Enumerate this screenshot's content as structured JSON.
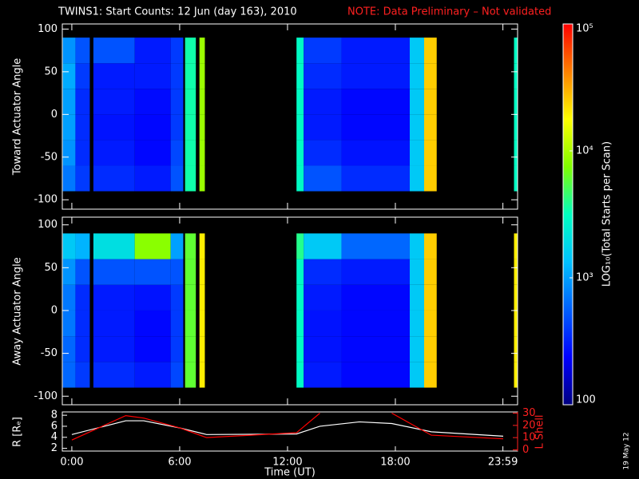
{
  "chart_data": [
    {
      "type": "heatmap",
      "title": "TWINS1: Start Counts: 12 Jun (day 163), 2010",
      "note": "NOTE: Data Preliminary – Not validated",
      "ylabel": "Toward Actuator Angle",
      "xlim": [
        -0.53,
        24.8
      ],
      "ylim": [
        -111,
        106
      ],
      "yticks": [
        100,
        50,
        0,
        -50,
        -100
      ],
      "xbins": [
        -0.5,
        0.2,
        1.0,
        1.2,
        3.5,
        5.5,
        6.2,
        6.3,
        6.9,
        7.1,
        7.4,
        12.5,
        12.9,
        15,
        18.8,
        19.6,
        20.3,
        24.6,
        24.8
      ],
      "ybins": [
        -90,
        -60,
        -30,
        0,
        30,
        60,
        90
      ],
      "values": [
        [
          700,
          400,
          null,
          350,
          300,
          500,
          null,
          3500,
          null,
          9000,
          null,
          3000,
          500,
          350,
          1500,
          25000,
          null,
          3000
        ],
        [
          900,
          350,
          null,
          300,
          250,
          450,
          null,
          3500,
          null,
          9000,
          null,
          3000,
          350,
          280,
          1500,
          25000,
          null,
          3000
        ],
        [
          1000,
          350,
          null,
          280,
          250,
          400,
          null,
          3500,
          null,
          9000,
          null,
          3000,
          300,
          250,
          1500,
          25000,
          null,
          3000
        ],
        [
          1000,
          350,
          null,
          300,
          260,
          400,
          null,
          3500,
          null,
          9000,
          null,
          3000,
          300,
          250,
          1500,
          25000,
          null,
          3000
        ],
        [
          1100,
          400,
          null,
          300,
          300,
          400,
          null,
          3500,
          null,
          9000,
          null,
          3000,
          350,
          300,
          1500,
          25000,
          null,
          3000
        ],
        [
          900,
          500,
          null,
          500,
          300,
          400,
          null,
          3500,
          null,
          9000,
          null,
          3000,
          400,
          300,
          1500,
          25000,
          null,
          3000
        ]
      ],
      "zlabel": "LOG₁₀(Total Starts per Scan)",
      "zscale": "log",
      "zlim": [
        100,
        100000
      ],
      "zticks": [
        100,
        {
          "value": 1000,
          "label": "10³"
        },
        {
          "value": 10000,
          "label": "10⁴"
        },
        {
          "value": 100000,
          "label": "10⁵"
        }
      ],
      "colormap": [
        "#000080",
        "#0000ff",
        "#0060ff",
        "#00c0ff",
        "#00ffc0",
        "#80ff00",
        "#ffff00",
        "#ff8000",
        "#ff0000"
      ]
    },
    {
      "type": "heatmap",
      "ylabel": "Away Actuator Angle",
      "xlim": [
        -0.53,
        24.8
      ],
      "ylim": [
        -110,
        109
      ],
      "yticks": [
        100,
        50,
        0,
        -50,
        -100
      ],
      "xbins": [
        -0.5,
        0.2,
        1.0,
        1.2,
        3.5,
        5.5,
        6.2,
        6.3,
        6.9,
        7.1,
        7.4,
        12.5,
        12.9,
        15,
        18.8,
        19.6,
        20.3,
        24.6,
        24.8
      ],
      "ybins": [
        -90,
        -60,
        -30,
        0,
        30,
        60,
        90
      ],
      "values": [
        [
          600,
          400,
          null,
          350,
          300,
          450,
          null,
          6000,
          null,
          20000,
          null,
          3000,
          300,
          250,
          1500,
          25000,
          null,
          20000
        ],
        [
          600,
          350,
          null,
          300,
          250,
          400,
          null,
          6000,
          null,
          20000,
          null,
          3000,
          280,
          250,
          1500,
          25000,
          null,
          20000
        ],
        [
          700,
          350,
          null,
          300,
          250,
          400,
          null,
          6000,
          null,
          20000,
          null,
          3000,
          280,
          250,
          1500,
          25000,
          null,
          20000
        ],
        [
          700,
          350,
          null,
          300,
          280,
          400,
          null,
          6000,
          null,
          20000,
          null,
          3000,
          300,
          250,
          1500,
          25000,
          null,
          20000
        ],
        [
          900,
          500,
          null,
          500,
          500,
          500,
          null,
          6000,
          null,
          20000,
          null,
          3000,
          350,
          300,
          1500,
          25000,
          null,
          20000
        ],
        [
          1500,
          1200,
          null,
          2000,
          8000,
          1000,
          null,
          6000,
          null,
          20000,
          null,
          4000,
          1500,
          600,
          1500,
          25000,
          null,
          20000
        ]
      ]
    },
    {
      "type": "line",
      "xlabel": "Time (UT)",
      "ylabel": "R [Rₑ]",
      "y2label": "L Shell",
      "xlim": [
        -0.53,
        24.8
      ],
      "xticks": [
        {
          "value": 0,
          "label": "0:00"
        },
        {
          "value": 6,
          "label": "6:00"
        },
        {
          "value": 12,
          "label": "12:00"
        },
        {
          "value": 18,
          "label": "18:00"
        },
        {
          "value": 23.983,
          "label": "23:59"
        }
      ],
      "ylim": [
        1.5,
        8.6
      ],
      "yticks": [
        2,
        4,
        6,
        8
      ],
      "y2lim": [
        -1,
        31
      ],
      "y2ticks": [
        0,
        10,
        20,
        30
      ],
      "x": [
        0,
        3,
        4,
        6,
        7.5,
        12.5,
        13.8,
        16,
        17.8,
        20,
        24
      ],
      "series": [
        {
          "name": "R",
          "color": "#ffffff",
          "values": [
            4.5,
            7,
            7,
            5.7,
            4.5,
            4.6,
            6,
            6.8,
            6.5,
            5,
            4.2
          ]
        },
        {
          "name": "L Shell",
          "color": "#ff0000",
          "axis": "y2",
          "values": [
            8,
            28,
            26,
            18,
            10,
            14,
            30,
            null,
            30,
            12,
            9
          ]
        }
      ]
    }
  ],
  "footer_date": "19 May 12"
}
